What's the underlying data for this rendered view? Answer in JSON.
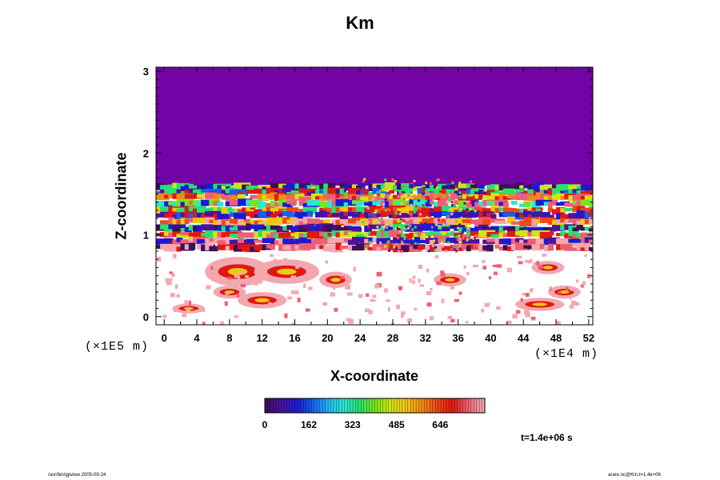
{
  "chart_data": {
    "type": "heatmap",
    "title": "Km",
    "xlabel": "X-coordinate",
    "ylabel": "Z-coordinate",
    "x_scale_label": "(×1E4 m)",
    "z_scale_label": "(×1E5 m)",
    "xlim": [
      -1,
      52.5
    ],
    "ylim": [
      -0.1,
      3.05
    ],
    "x_ticks": [
      0,
      4,
      8,
      12,
      16,
      20,
      24,
      28,
      32,
      36,
      40,
      44,
      48,
      52
    ],
    "y_ticks": [
      0,
      1,
      2,
      3
    ],
    "colorbar": {
      "ticks": [
        "0",
        "162",
        "323",
        "485",
        "646"
      ],
      "tick_values": [
        0,
        162,
        323,
        485,
        646
      ],
      "range": [
        0,
        810
      ],
      "colors": [
        "#3a0f5c",
        "#4c129e",
        "#1a1ad6",
        "#1660f0",
        "#22b6f0",
        "#2be8d0",
        "#27e070",
        "#7ae41c",
        "#d2e414",
        "#f2c814",
        "#f28c14",
        "#f04814",
        "#e01814",
        "#ee6070",
        "#f3a8b0"
      ]
    },
    "field_description_bands": [
      {
        "z_range": [
          1.6,
          3.05
        ],
        "value": 0
      },
      {
        "z_range": [
          0.8,
          1.6
        ],
        "value": "mixed 0-810"
      },
      {
        "z_range": [
          -0.1,
          0.8
        ],
        "value": "mostly high, patchy"
      }
    ],
    "time_label": "t=1.4e+06 s"
  },
  "footer": {
    "left": "/usr/bin/gpview 2005-09-24",
    "right": "arare.nc@Km,t=1.4e+06"
  }
}
